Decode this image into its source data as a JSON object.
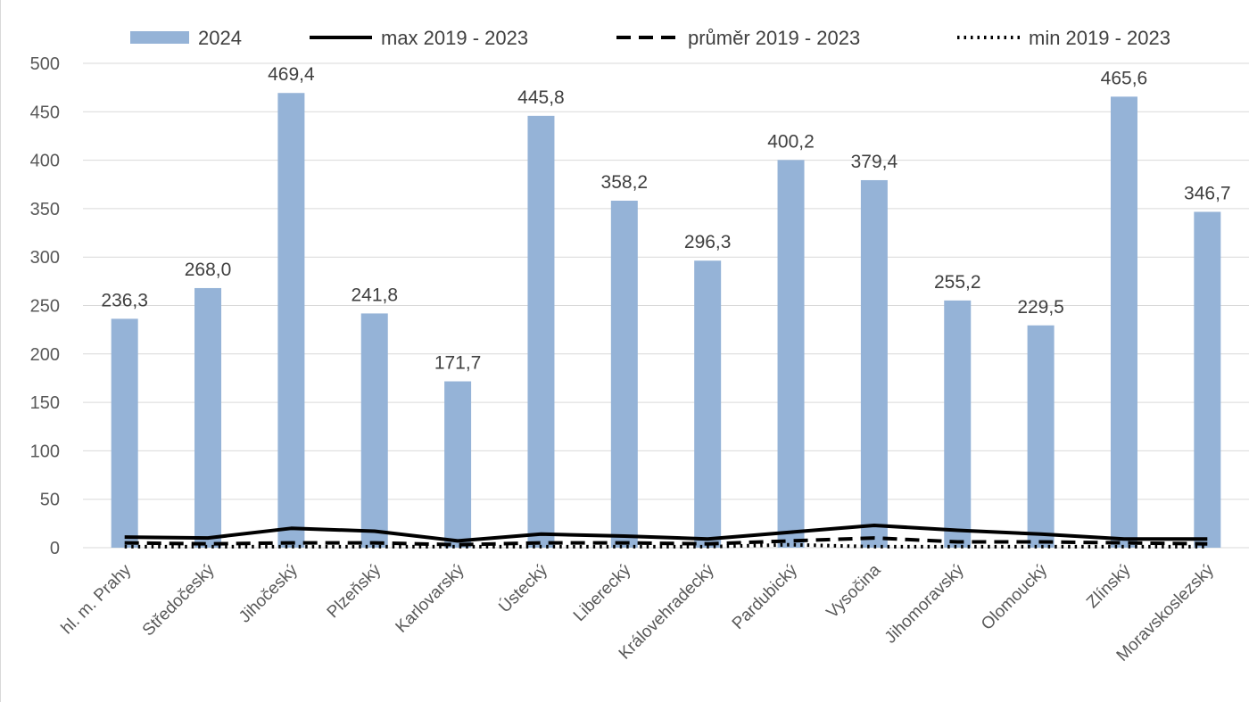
{
  "chart_data": {
    "type": "bar",
    "categories": [
      "hl. m. Prahy",
      "Středočeský",
      "Jihočeský",
      "Plzeňský",
      "Karlovarský",
      "Ústecký",
      "Liberecký",
      "Královehradecký",
      "Pardubický",
      "Vysočina",
      "Jihomoravský",
      "Olomoucký",
      "Zlínský",
      "Moravskoslezský"
    ],
    "series": [
      {
        "name": "2024",
        "kind": "bar",
        "color": "#95b3d7",
        "values": [
          236.3,
          268.0,
          469.4,
          241.8,
          171.7,
          445.8,
          358.2,
          296.3,
          400.2,
          379.4,
          255.2,
          229.5,
          465.6,
          346.7
        ],
        "labels": [
          "236,3",
          "268,0",
          "469,4",
          "241,8",
          "171,7",
          "445,8",
          "358,2",
          "296,3",
          "400,2",
          "379,4",
          "255,2",
          "229,5",
          "465,6",
          "346,7"
        ]
      },
      {
        "name": "max 2019 - 2023",
        "kind": "line",
        "style": "solid",
        "color": "#000000",
        "values": [
          11,
          10,
          20,
          17,
          7,
          14,
          12,
          9,
          16,
          23,
          18,
          14,
          9,
          9
        ]
      },
      {
        "name": "průměr 2019 - 2023",
        "kind": "line",
        "style": "dashed",
        "color": "#000000",
        "values": [
          5,
          4,
          5,
          5,
          3,
          5,
          5,
          4,
          7,
          10,
          6,
          6,
          5,
          4
        ]
      },
      {
        "name": "min 2019 - 2023",
        "kind": "line",
        "style": "dotted",
        "color": "#000000",
        "values": [
          1,
          1,
          1,
          1,
          1,
          1,
          1,
          1,
          3,
          1,
          1,
          1,
          1,
          1
        ]
      }
    ],
    "ylim": [
      0,
      500
    ],
    "yticks": [
      0,
      50,
      100,
      150,
      200,
      250,
      300,
      350,
      400,
      450,
      500
    ],
    "grid": true,
    "legend_position": "top",
    "title": "",
    "xlabel": "",
    "ylabel": ""
  }
}
